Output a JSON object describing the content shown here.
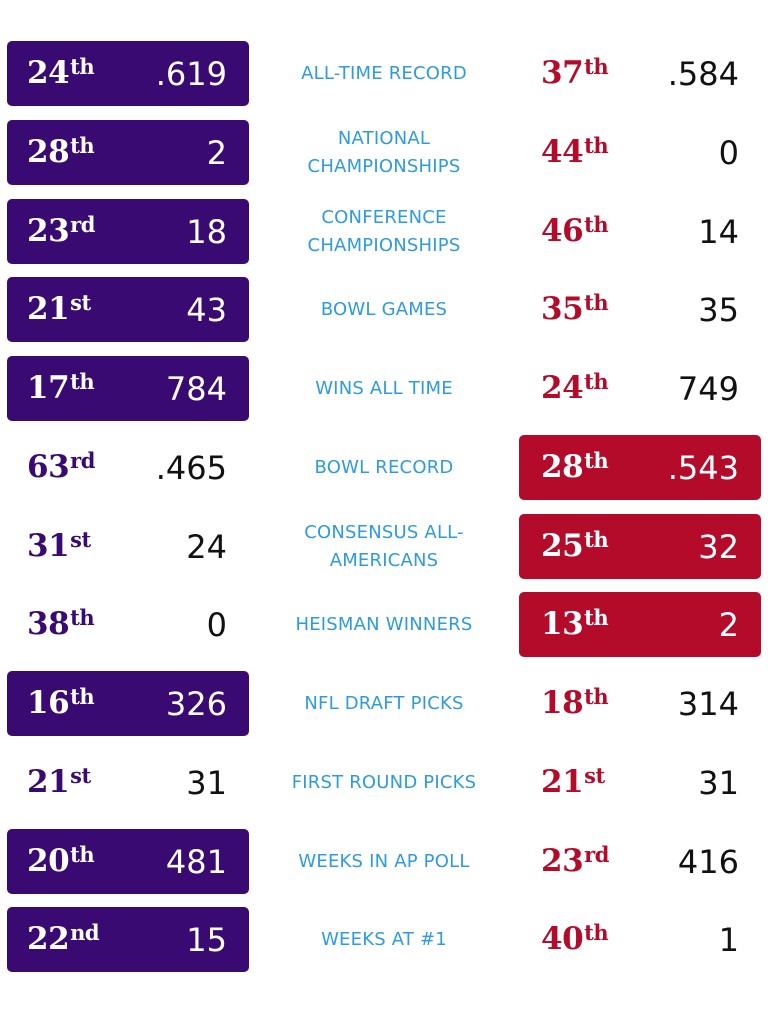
{
  "colors": {
    "left_team": "#3a0a73",
    "right_team": "#b40b2a",
    "label": "#2e9be0"
  },
  "rows": [
    {
      "label": [
        "ALL-TIME RECORD"
      ],
      "left": {
        "rank": "24",
        "suffix": "th",
        "value": ".619"
      },
      "right": {
        "rank": "37",
        "suffix": "th",
        "value": ".584"
      },
      "highlight": "left"
    },
    {
      "label": [
        "NATIONAL",
        "CHAMPIONSHIPS"
      ],
      "left": {
        "rank": "28",
        "suffix": "th",
        "value": "2"
      },
      "right": {
        "rank": "44",
        "suffix": "th",
        "value": "0"
      },
      "highlight": "left"
    },
    {
      "label": [
        "CONFERENCE",
        "CHAMPIONSHIPS"
      ],
      "left": {
        "rank": "23",
        "suffix": "rd",
        "value": "18"
      },
      "right": {
        "rank": "46",
        "suffix": "th",
        "value": "14"
      },
      "highlight": "left"
    },
    {
      "label": [
        "BOWL GAMES"
      ],
      "left": {
        "rank": "21",
        "suffix": "st",
        "value": "43"
      },
      "right": {
        "rank": "35",
        "suffix": "th",
        "value": "35"
      },
      "highlight": "left"
    },
    {
      "label": [
        "WINS ALL TIME"
      ],
      "left": {
        "rank": "17",
        "suffix": "th",
        "value": "784"
      },
      "right": {
        "rank": "24",
        "suffix": "th",
        "value": "749"
      },
      "highlight": "left"
    },
    {
      "label": [
        "BOWL RECORD"
      ],
      "left": {
        "rank": "63",
        "suffix": "rd",
        "value": ".465"
      },
      "right": {
        "rank": "28",
        "suffix": "th",
        "value": ".543"
      },
      "highlight": "right"
    },
    {
      "label": [
        "CONSENSUS ALL-",
        "AMERICANS"
      ],
      "left": {
        "rank": "31",
        "suffix": "st",
        "value": "24"
      },
      "right": {
        "rank": "25",
        "suffix": "th",
        "value": "32"
      },
      "highlight": "right"
    },
    {
      "label": [
        "HEISMAN WINNERS"
      ],
      "left": {
        "rank": "38",
        "suffix": "th",
        "value": "0"
      },
      "right": {
        "rank": "13",
        "suffix": "th",
        "value": "2"
      },
      "highlight": "right"
    },
    {
      "label": [
        "NFL DRAFT PICKS"
      ],
      "left": {
        "rank": "16",
        "suffix": "th",
        "value": "326"
      },
      "right": {
        "rank": "18",
        "suffix": "th",
        "value": "314"
      },
      "highlight": "left"
    },
    {
      "label": [
        "FIRST ROUND PICKS"
      ],
      "left": {
        "rank": "21",
        "suffix": "st",
        "value": "31"
      },
      "right": {
        "rank": "21",
        "suffix": "st",
        "value": "31"
      },
      "highlight": "none"
    },
    {
      "label": [
        "WEEKS IN AP POLL"
      ],
      "left": {
        "rank": "20",
        "suffix": "th",
        "value": "481"
      },
      "right": {
        "rank": "23",
        "suffix": "rd",
        "value": "416"
      },
      "highlight": "left"
    },
    {
      "label": [
        "WEEKS AT #1"
      ],
      "left": {
        "rank": "22",
        "suffix": "nd",
        "value": "15"
      },
      "right": {
        "rank": "40",
        "suffix": "th",
        "value": "1"
      },
      "highlight": "left"
    }
  ]
}
